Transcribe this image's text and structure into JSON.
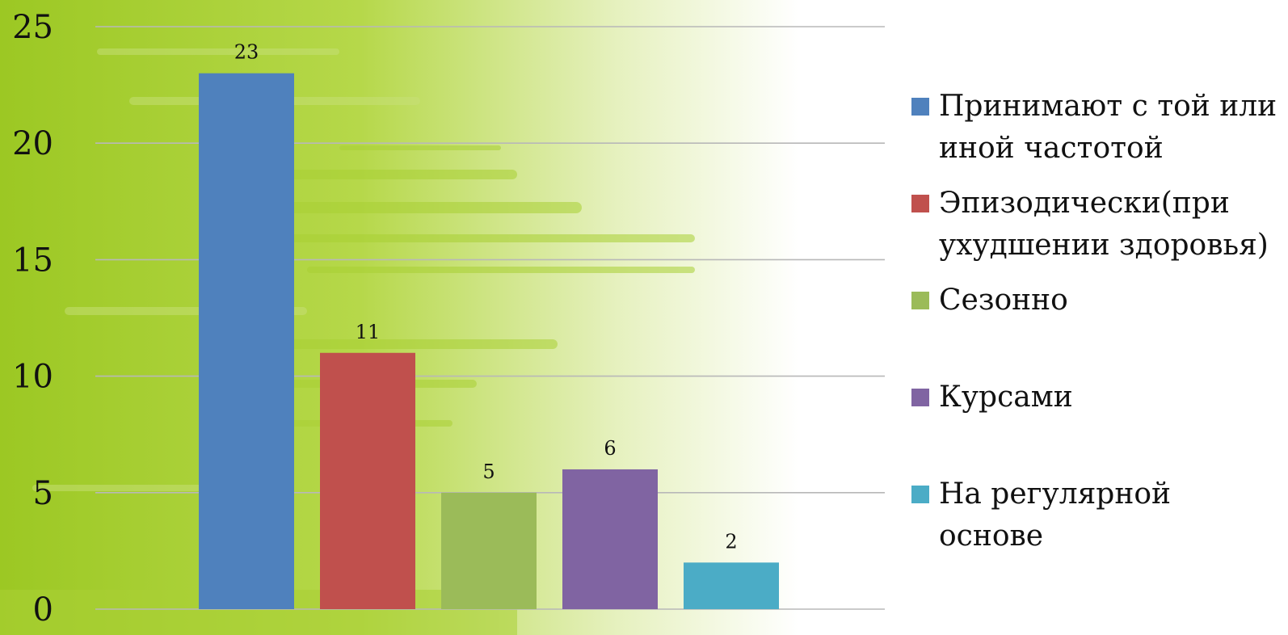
{
  "chart_data": {
    "type": "bar",
    "categories": [
      "Принимают  с той или иной частотой",
      "Эпизодически(при ухудшении здоровья)",
      "Сезонно",
      "Курсами",
      "На регулярной основе"
    ],
    "values": [
      23,
      11,
      5,
      6,
      2
    ],
    "data_labels": [
      "23",
      "11",
      "5",
      "6",
      "2"
    ],
    "colors": [
      "#4F81BD",
      "#C0504D",
      "#9BBB59",
      "#8064A2",
      "#4BACC6"
    ],
    "ylim": [
      0,
      25
    ],
    "yticks": [
      "0",
      "5",
      "10",
      "15",
      "20",
      "25"
    ],
    "grid": true,
    "legend": {
      "position": "right",
      "entries": [
        "Принимают  с той или иной частотой",
        "Эпизодически(при ухудшении здоровья)",
        "Сезонно",
        "Курсами",
        "На регулярной основе"
      ]
    }
  }
}
